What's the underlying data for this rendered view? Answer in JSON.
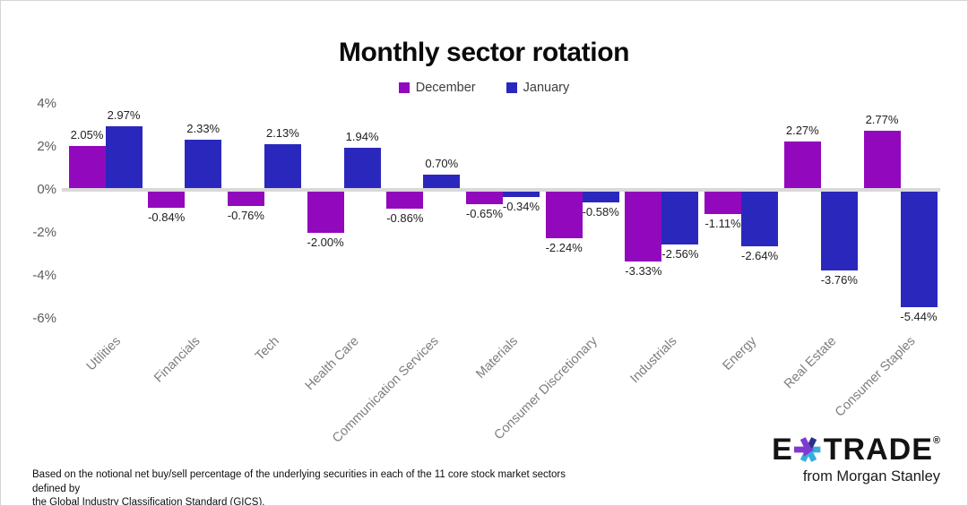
{
  "page": {
    "title": "Monthly sector rotation"
  },
  "legend": {
    "items": [
      {
        "label": "December",
        "color": "#9209BD"
      },
      {
        "label": "January",
        "color": "#2A28BC"
      }
    ]
  },
  "footnote": {
    "line1": "Based on the notional net buy/sell percentage of the underlying securities in each of the 11 core stock market sectors defined by",
    "line2": "the Global Industry Classification Standard (GICS)."
  },
  "logo": {
    "brand_e": "E",
    "brand_trade": "TRADE",
    "registered": "®",
    "tagline": "from Morgan Stanley",
    "star_purple": "#7E3AD0",
    "star_teal": "#35AEDD",
    "star_navy": "#2B3087"
  },
  "chart_data": {
    "type": "bar",
    "title": "Monthly sector rotation",
    "categories": [
      "Utilities",
      "Financials",
      "Tech",
      "Health Care",
      "Communication Services",
      "Materials",
      "Consumer Discretionary",
      "Industrials",
      "Energy",
      "Real Estate",
      "Consumer Staples"
    ],
    "series": [
      {
        "name": "December",
        "color": "#9209BD",
        "values": [
          2.05,
          -0.84,
          -0.76,
          -2.0,
          -0.86,
          -0.65,
          -2.24,
          -3.33,
          -1.11,
          2.27,
          2.77
        ]
      },
      {
        "name": "January",
        "color": "#2A28BC",
        "values": [
          2.97,
          2.33,
          2.13,
          1.94,
          0.7,
          -0.34,
          -0.58,
          -2.56,
          -2.64,
          -3.76,
          -5.44
        ]
      }
    ],
    "value_suffix": "%",
    "value_decimals": 2,
    "y_ticks": [
      {
        "label": "4%",
        "value": 4
      },
      {
        "label": "2%",
        "value": 2
      },
      {
        "label": "0%",
        "value": 0
      },
      {
        "label": "-2%",
        "value": -2
      },
      {
        "label": "-4%",
        "value": -4
      },
      {
        "label": "-6%",
        "value": -6
      }
    ],
    "ylim": [
      -6.5,
      4.5
    ],
    "grid": false,
    "zero_line_color": "#D9D9D9",
    "legend_position": "top",
    "xlabel": "",
    "ylabel": ""
  }
}
